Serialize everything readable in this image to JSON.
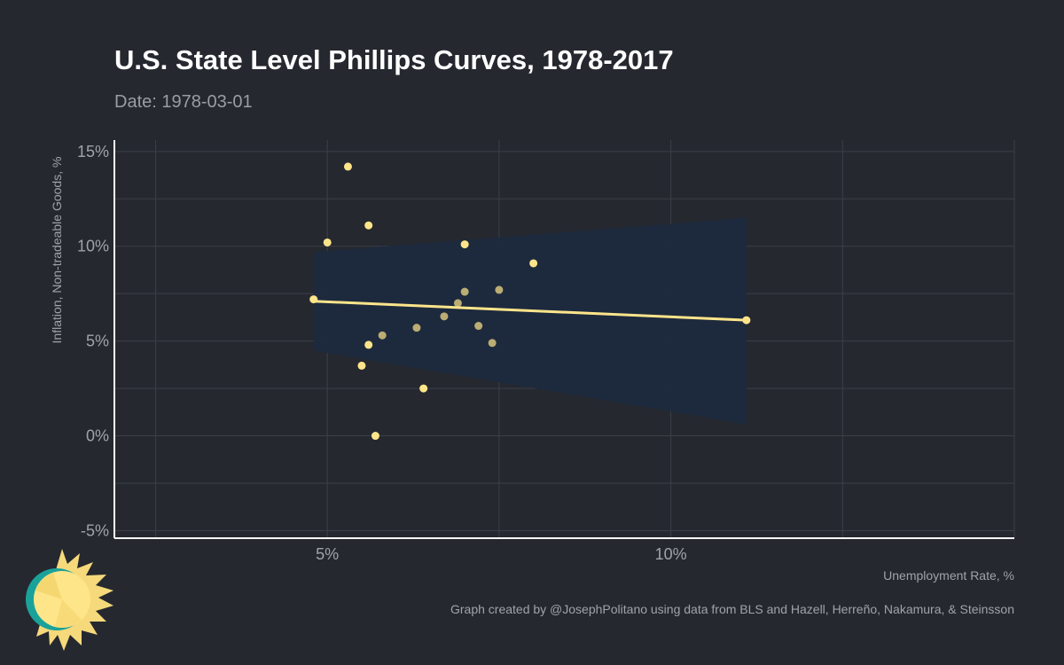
{
  "title": "U.S. State Level Phillips Curves, 1978-2017",
  "subtitle": "Date: 1978-03-01",
  "caption": "Graph created by @JosephPolitano using data from BLS and Hazell, Herreño, Nakamura, & Steinsson",
  "colors": {
    "background": "#25282f",
    "points": "#ffe58a",
    "fit_line": "#ffe58a",
    "confidence_band": "#1c2a3e",
    "grid": "#3b3f47",
    "axis": "#ffffff",
    "tick_text": "#a0a3a8"
  },
  "logo": {
    "icon": "sun-logo-icon"
  },
  "chart_data": {
    "type": "scatter",
    "xlabel": "Unemployment Rate, %",
    "ylabel": "Inflation, Non-tradeable Goods, %",
    "xlim": [
      1.9,
      15.0
    ],
    "ylim": [
      -5.4,
      15.6
    ],
    "x_ticks": [
      5,
      10
    ],
    "x_tick_labels": [
      "5%",
      "10%"
    ],
    "y_ticks": [
      -5,
      0,
      5,
      10,
      15
    ],
    "y_tick_labels": [
      "-5%",
      "0%",
      "5%",
      "10%",
      "15%"
    ],
    "grid": true,
    "points": [
      {
        "x": 4.8,
        "y": 7.2
      },
      {
        "x": 5.0,
        "y": 10.2
      },
      {
        "x": 5.3,
        "y": 14.2
      },
      {
        "x": 5.5,
        "y": 3.7
      },
      {
        "x": 5.6,
        "y": 11.1
      },
      {
        "x": 5.6,
        "y": 4.8
      },
      {
        "x": 5.7,
        "y": 0.0
      },
      {
        "x": 5.8,
        "y": 5.3
      },
      {
        "x": 6.3,
        "y": 5.7
      },
      {
        "x": 6.4,
        "y": 2.5
      },
      {
        "x": 6.7,
        "y": 6.3
      },
      {
        "x": 6.9,
        "y": 7.0
      },
      {
        "x": 7.0,
        "y": 10.1
      },
      {
        "x": 7.0,
        "y": 7.6
      },
      {
        "x": 7.2,
        "y": 5.8
      },
      {
        "x": 7.4,
        "y": 4.9
      },
      {
        "x": 7.5,
        "y": 7.7
      },
      {
        "x": 8.0,
        "y": 9.1
      },
      {
        "x": 11.1,
        "y": 6.1
      }
    ],
    "fit_line": {
      "x": [
        4.8,
        11.1
      ],
      "y": [
        7.1,
        6.1
      ]
    },
    "confidence_band": {
      "x": [
        4.8,
        11.1
      ],
      "upper": [
        9.7,
        11.5
      ],
      "lower": [
        4.5,
        0.6
      ]
    }
  }
}
